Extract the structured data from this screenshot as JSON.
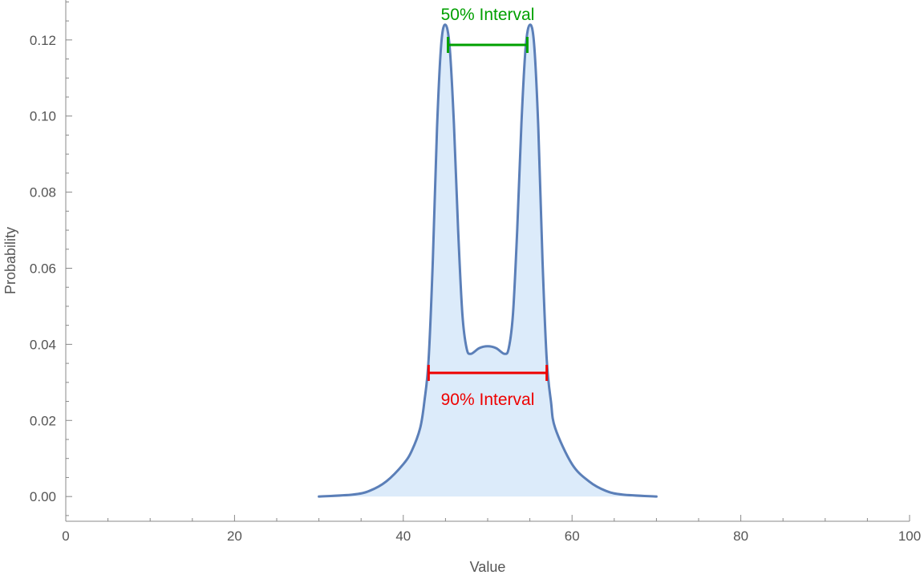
{
  "chart_data": {
    "type": "area",
    "title": "",
    "xlabel": "Value",
    "ylabel": "Probability",
    "xlim": [
      0,
      100
    ],
    "ylim": [
      -0.0065,
      0.1305
    ],
    "x_ticks": [
      0,
      20,
      40,
      60,
      80,
      100
    ],
    "x_tick_labels": [
      "0",
      "20",
      "40",
      "60",
      "80",
      "100"
    ],
    "y_ticks": [
      0,
      0.02,
      0.04,
      0.06,
      0.08,
      0.1,
      0.12
    ],
    "y_tick_labels": [
      "0.00",
      "0.02",
      "0.04",
      "0.06",
      "0.08",
      "0.10",
      "0.12"
    ],
    "grid": false,
    "series": [
      {
        "x": [
          30,
          34,
          36,
          38,
          40,
          41,
          42,
          42.5,
          43,
          43.5,
          44,
          44.5,
          45,
          45.5,
          46,
          46.5,
          47,
          47.5,
          48,
          49,
          50,
          51,
          52,
          52.5,
          53,
          53.5,
          54,
          54.5,
          55,
          55.5,
          56,
          56.5,
          57,
          57.5,
          58,
          60,
          62,
          64,
          66,
          70
        ],
        "y": [
          0,
          0.0005,
          0.0015,
          0.004,
          0.0085,
          0.012,
          0.018,
          0.025,
          0.036,
          0.062,
          0.097,
          0.119,
          0.124,
          0.118,
          0.098,
          0.07,
          0.048,
          0.039,
          0.0375,
          0.039,
          0.0395,
          0.039,
          0.0375,
          0.039,
          0.048,
          0.07,
          0.098,
          0.118,
          0.124,
          0.119,
          0.097,
          0.062,
          0.036,
          0.025,
          0.018,
          0.0085,
          0.004,
          0.0015,
          0.0005,
          0
        ],
        "color": "#5b7fb8",
        "fill": "#dcebfa"
      }
    ],
    "annotations": [
      {
        "text": "50% Interval",
        "x_start": 45.3,
        "x_end": 54.7,
        "y": 0.1187,
        "color": "#00a000",
        "label_position": "above"
      },
      {
        "text": "90% Interval",
        "x_start": 43.0,
        "x_end": 57.0,
        "y": 0.0325,
        "color": "#ee0000",
        "label_position": "below"
      }
    ]
  }
}
